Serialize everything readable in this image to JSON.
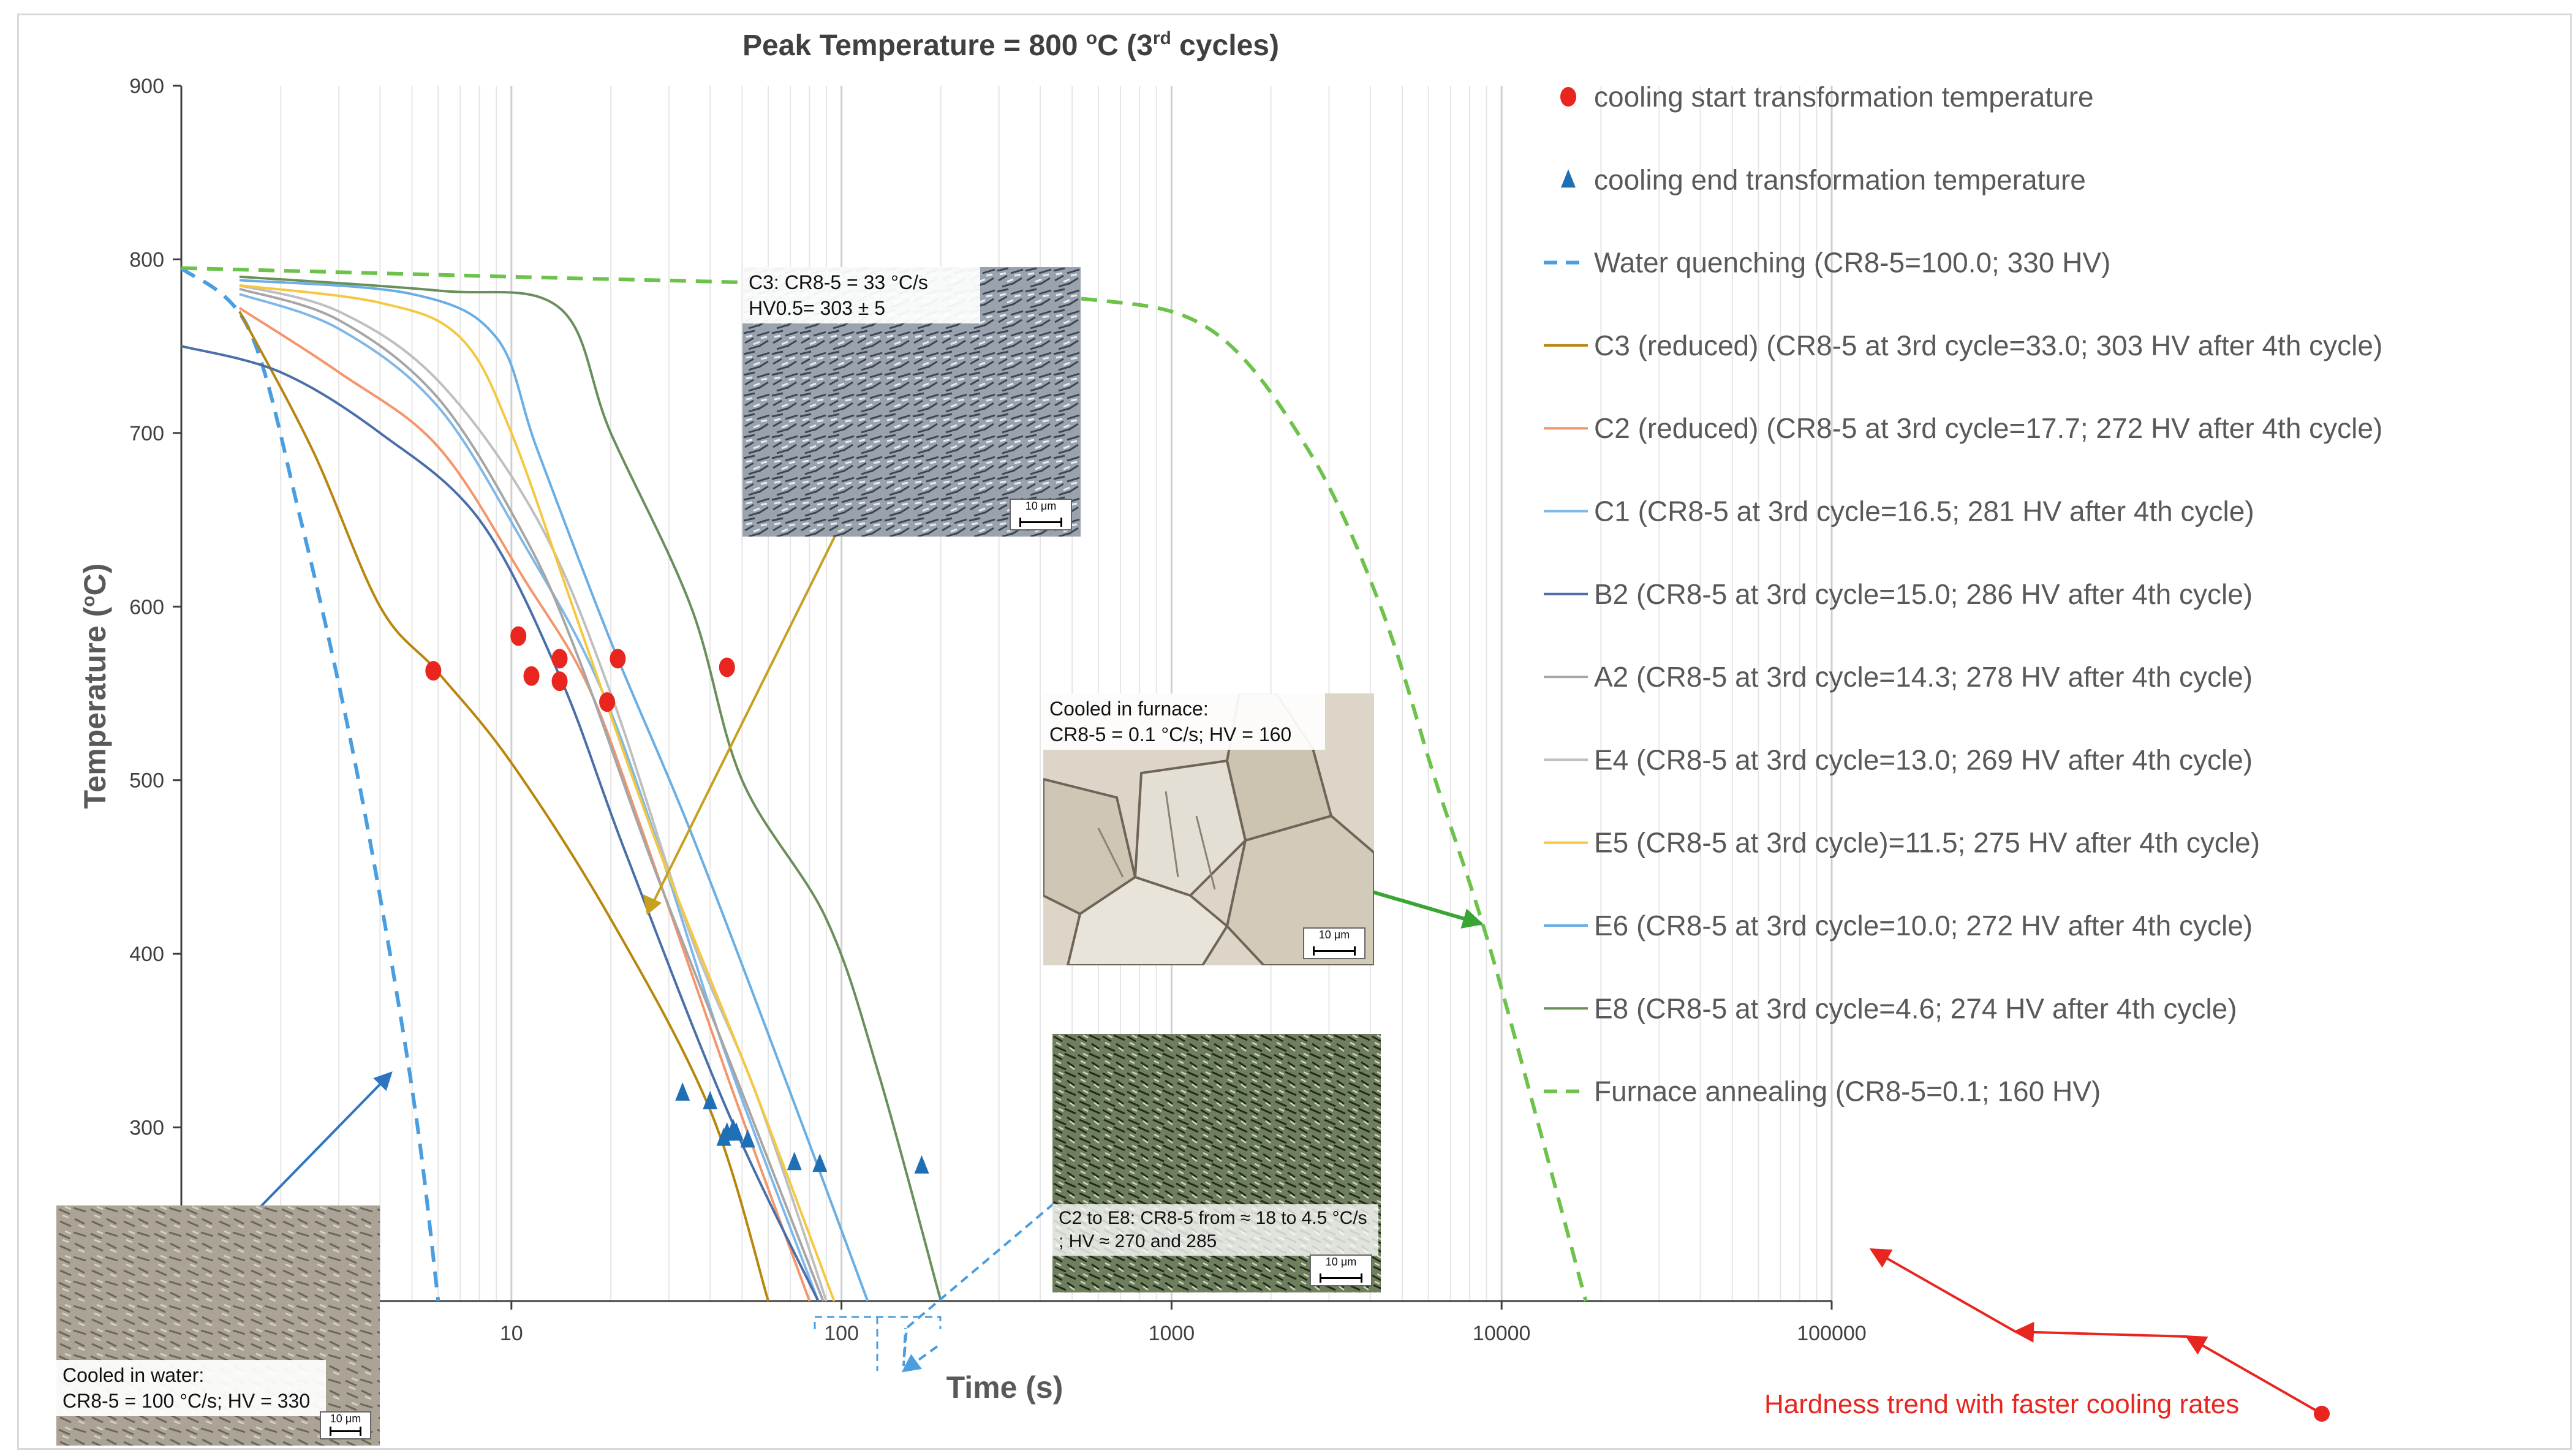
{
  "chart_data": {
    "type": "line",
    "title": "Peak Temperature = 800 °C  (3rd cycles)",
    "title_main": "Peak Temperature = 800 ",
    "title_deg": "o",
    "title_unit": "C  (3",
    "title_sup": "rd",
    "title_end": " cycles)",
    "xlabel": "Time (s)",
    "ylabel": "Temperature (°C)",
    "ylabel_main": "Temperature (",
    "ylabel_deg": "o",
    "ylabel_end": "C)",
    "x_scale": "log",
    "xlim": [
      1,
      100000
    ],
    "ylim": [
      200,
      900
    ],
    "x_ticks": [
      "10",
      "100",
      "1000",
      "10000",
      "100000"
    ],
    "y_ticks": [
      "900",
      "800",
      "700",
      "600",
      "500",
      "400",
      "300"
    ],
    "grid": "vertical log gridlines",
    "legend_position": "right",
    "series": [
      {
        "name": "Water quenching (CR8-5=100.0; 330 HV)",
        "color": "#4a9ee0",
        "dash": true,
        "points": [
          [
            1,
            795
          ],
          [
            1.6,
            760
          ],
          [
            2.3,
            650
          ],
          [
            3.2,
            530
          ],
          [
            4.2,
            410
          ],
          [
            5.2,
            300
          ],
          [
            6.0,
            200
          ]
        ]
      },
      {
        "name": "C3 (reduced) (CR8-5 at 3rd cycle=33.0; 303 HV after 4th cycle)",
        "color": "#b8860b",
        "dash": false,
        "points": [
          [
            1.5,
            770
          ],
          [
            2.5,
            690
          ],
          [
            4,
            600
          ],
          [
            6,
            562
          ],
          [
            10,
            510
          ],
          [
            20,
            420
          ],
          [
            40,
            310
          ],
          [
            60,
            200
          ]
        ]
      },
      {
        "name": "C2 (reduced) (CR8-5 at 3rd cycle=17.7; 272 HV after 4th cycle)",
        "color": "#f4956b",
        "dash": false,
        "points": [
          [
            1.5,
            772
          ],
          [
            3,
            735
          ],
          [
            6,
            692
          ],
          [
            11,
            615
          ],
          [
            17,
            555
          ],
          [
            25,
            470
          ],
          [
            45,
            330
          ],
          [
            80,
            200
          ]
        ]
      },
      {
        "name": "C1 (CR8-5 at 3rd cycle=16.5; 281 HV after 4th cycle)",
        "color": "#7fb8e8",
        "dash": false,
        "points": [
          [
            1.5,
            780
          ],
          [
            3,
            760
          ],
          [
            6,
            715
          ],
          [
            11,
            635
          ],
          [
            18,
            560
          ],
          [
            27,
            470
          ],
          [
            45,
            340
          ],
          [
            85,
            200
          ]
        ]
      },
      {
        "name": "B2 (CR8-5 at 3rd cycle=15.0; 286 HV after 4th cycle)",
        "color": "#4a6fa8",
        "dash": false,
        "points": [
          [
            1,
            750
          ],
          [
            2,
            735
          ],
          [
            4,
            700
          ],
          [
            8,
            650
          ],
          [
            14,
            560
          ],
          [
            22,
            460
          ],
          [
            45,
            310
          ],
          [
            85,
            200
          ]
        ]
      },
      {
        "name": "A2 (CR8-5 at 3rd cycle=14.3; 278 HV after 4th cycle)",
        "color": "#a6a6a6",
        "dash": false,
        "points": [
          [
            1.5,
            783
          ],
          [
            3,
            765
          ],
          [
            6,
            720
          ],
          [
            11,
            640
          ],
          [
            16,
            570
          ],
          [
            27,
            450
          ],
          [
            50,
            320
          ],
          [
            88,
            200
          ]
        ]
      },
      {
        "name": "E4 (CR8-5 at 3rd cycle=13.0; 269 HV after 4th cycle)",
        "color": "#bfbfbf",
        "dash": false,
        "points": [
          [
            1.5,
            785
          ],
          [
            3,
            770
          ],
          [
            6,
            730
          ],
          [
            12,
            650
          ],
          [
            20,
            550
          ],
          [
            35,
            410
          ],
          [
            55,
            320
          ],
          [
            90,
            200
          ]
        ]
      },
      {
        "name": "E5 (CR8-5 at 3rd cycle)=11.5; 275 HV after 4th cycle)",
        "color": "#f5c842",
        "dash": false,
        "points": [
          [
            1.5,
            785
          ],
          [
            4,
            775
          ],
          [
            7,
            755
          ],
          [
            10,
            700
          ],
          [
            16,
            590
          ],
          [
            28,
            460
          ],
          [
            55,
            320
          ],
          [
            95,
            200
          ]
        ]
      },
      {
        "name": "E6 (CR8-5 at 3rd cycle=10.0; 272 HV after 4th cycle)",
        "color": "#6aaee3",
        "dash": false,
        "points": [
          [
            1.5,
            788
          ],
          [
            5,
            780
          ],
          [
            9,
            755
          ],
          [
            12,
            690
          ],
          [
            20,
            580
          ],
          [
            35,
            470
          ],
          [
            70,
            320
          ],
          [
            120,
            200
          ]
        ]
      },
      {
        "name": "E8 (CR8-5 at 3rd cycle=4.6; 274 HV after 4th cycle)",
        "color": "#6a8f5a",
        "dash": false,
        "points": [
          [
            1.5,
            790
          ],
          [
            6,
            782
          ],
          [
            14,
            772
          ],
          [
            20,
            700
          ],
          [
            35,
            600
          ],
          [
            50,
            500
          ],
          [
            90,
            420
          ],
          [
            130,
            330
          ],
          [
            200,
            200
          ]
        ]
      },
      {
        "name": "Furnace annealing (CR8-5=0.1; 160 HV)",
        "color": "#6cc24a",
        "dash": true,
        "points": [
          [
            1,
            795
          ],
          [
            10,
            790
          ],
          [
            100,
            785
          ],
          [
            500,
            778
          ],
          [
            1300,
            760
          ],
          [
            2600,
            690
          ],
          [
            4300,
            600
          ],
          [
            6300,
            500
          ],
          [
            9000,
            410
          ],
          [
            13000,
            300
          ],
          [
            18000,
            200
          ]
        ]
      }
    ],
    "markers": [
      {
        "name": "cooling start transformation temperature",
        "color": "#e8251f",
        "shape": "circle",
        "points": [
          [
            5.8,
            563
          ],
          [
            10.5,
            583
          ],
          [
            11.5,
            560
          ],
          [
            14,
            570
          ],
          [
            14,
            557
          ],
          [
            19.5,
            545
          ],
          [
            21,
            570
          ],
          [
            45,
            565
          ]
        ]
      },
      {
        "name": "cooling end transformation temperature",
        "color": "#1f6fb5",
        "shape": "triangle",
        "points": [
          [
            33,
            320
          ],
          [
            40,
            315
          ],
          [
            44,
            294
          ],
          [
            45,
            297
          ],
          [
            47,
            299
          ],
          [
            48,
            297
          ],
          [
            52,
            293
          ],
          [
            72,
            280
          ],
          [
            86,
            279
          ],
          [
            175,
            278
          ]
        ]
      }
    ],
    "annotations": [
      {
        "text": "Hardness trend with faster cooling rates",
        "color": "#e8251f"
      }
    ]
  },
  "insets": {
    "c3": {
      "line1": "C3: CR8-5 = 33 °C/s",
      "line2": "HV0.5= 303 ± 5",
      "scale": "10 μm"
    },
    "furnace": {
      "line1": "Cooled in furnace:",
      "line2": "CR8-5 = 0.1 °C/s; HV = 160",
      "scale": "10 μm"
    },
    "c2e8": {
      "line1": "C2 to E8: CR8-5 from ≈ 18 to 4.5 °C/s",
      "line2": "; HV ≈ 270 and 285",
      "scale": "10 μm"
    },
    "water": {
      "line1": "Cooled in water:",
      "line2": "CR8-5 = 100 °C/s; HV = 330",
      "scale": "10 μm"
    }
  },
  "colors": {
    "arrow_c3": "#c8a020",
    "arrow_furnace": "#3aa535",
    "arrow_water": "#2f74c0",
    "arrow_c2e8": "#4a9ee0",
    "trend": "#e8251f"
  }
}
